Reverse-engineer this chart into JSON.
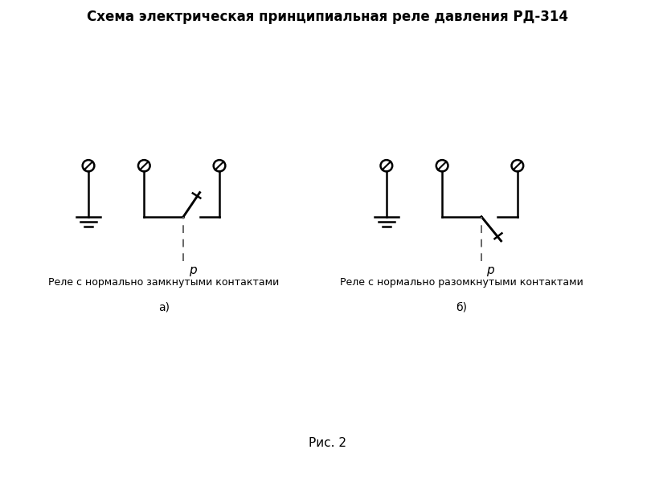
{
  "title": "Схема электрическая принципиальная реле давления РД-314",
  "title_fontsize": 12,
  "background_color": "#ffffff",
  "line_color": "#000000",
  "dashed_color": "#666666",
  "fig_caption": "Рис. 2",
  "label_a": "а)",
  "label_b": "б)",
  "text_a": "Реле с нормально замкнутыми контактами",
  "text_b": "Реле с нормально разомкнутыми контактами",
  "p_label": "р",
  "circle_r": 0.09,
  "lw": 1.8,
  "xlim": [
    0,
    10
  ],
  "ylim": [
    0,
    7.5
  ]
}
